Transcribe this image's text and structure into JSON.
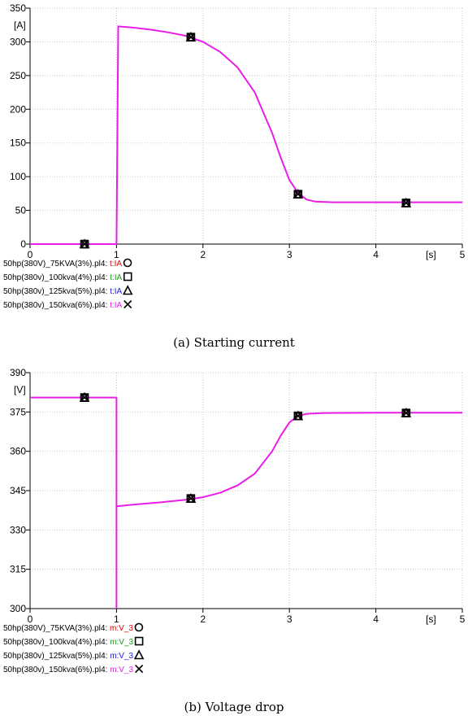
{
  "chart_data": [
    {
      "type": "line",
      "caption": "(a) Starting current",
      "xunit": "[s]",
      "yunit": "[A]",
      "xlim": [
        0,
        5
      ],
      "ylim": [
        0,
        350
      ],
      "xticks": [
        0,
        1,
        2,
        3,
        4,
        5
      ],
      "yticks": [
        0,
        50,
        100,
        150,
        200,
        250,
        300,
        350
      ],
      "line_color": "#e81ee8",
      "series": [
        {
          "values": [
            [
              0,
              0
            ],
            [
              0.99,
              0
            ],
            [
              1.0,
              0
            ],
            [
              1.02,
              323
            ],
            [
              1.2,
              321
            ],
            [
              1.4,
              318
            ],
            [
              1.6,
              314
            ],
            [
              1.8,
              309
            ],
            [
              2.0,
              300
            ],
            [
              2.2,
              285
            ],
            [
              2.4,
              262
            ],
            [
              2.6,
              225
            ],
            [
              2.8,
              165
            ],
            [
              2.9,
              128
            ],
            [
              3.0,
              95
            ],
            [
              3.1,
              76
            ],
            [
              3.2,
              66
            ],
            [
              3.3,
              63
            ],
            [
              3.5,
              62
            ],
            [
              4.0,
              62
            ],
            [
              4.5,
              62
            ],
            [
              5.0,
              62
            ]
          ],
          "markers": [
            [
              0.63,
              0
            ],
            [
              1.86,
              307
            ],
            [
              3.1,
              74
            ],
            [
              4.35,
              61
            ]
          ]
        }
      ],
      "legend": [
        {
          "file": "50hp(380V)_75KVA(3%).pl4:",
          "variable": "t:IA",
          "color": "#e00000",
          "marker": "circle"
        },
        {
          "file": "50hp(380v)_100kva(4%).pl4:",
          "variable": "t:IA",
          "color": "#1aa01a",
          "marker": "square"
        },
        {
          "file": "50hp(380v)_125kva(5%).pl4:",
          "variable": "t:IA",
          "color": "#1a1ae0",
          "marker": "triangle"
        },
        {
          "file": "50hp(380v)_150kva(6%).pl4:",
          "variable": "t:IA",
          "color": "#e81ee8",
          "marker": "cross"
        }
      ]
    },
    {
      "type": "line",
      "caption": "(b) Voltage drop",
      "xunit": "[s]",
      "yunit": "[V]",
      "xlim": [
        0,
        5
      ],
      "ylim": [
        300,
        390
      ],
      "xticks": [
        0,
        1,
        2,
        3,
        4,
        5
      ],
      "yticks": [
        300,
        315,
        330,
        345,
        360,
        375,
        390
      ],
      "line_color": "#e81ee8",
      "series": [
        {
          "values": [
            [
              0,
              380.5
            ],
            [
              1.0,
              380.5
            ],
            [
              1.0,
              300
            ],
            [
              1.0,
              339
            ],
            [
              1.2,
              339.7
            ],
            [
              1.5,
              340.5
            ],
            [
              1.8,
              341.5
            ],
            [
              2.0,
              342.5
            ],
            [
              2.2,
              344.2
            ],
            [
              2.4,
              347
            ],
            [
              2.6,
              351.5
            ],
            [
              2.8,
              360
            ],
            [
              2.9,
              366
            ],
            [
              3.0,
              371
            ],
            [
              3.1,
              373.5
            ],
            [
              3.2,
              374.3
            ],
            [
              3.4,
              374.6
            ],
            [
              4.0,
              374.7
            ],
            [
              5.0,
              374.7
            ]
          ],
          "markers": [
            [
              0.63,
              380.5
            ],
            [
              1.86,
              342
            ],
            [
              3.1,
              373.5
            ],
            [
              4.35,
              374.6
            ]
          ]
        }
      ],
      "legend": [
        {
          "file": "50hp(380V)_75KVA(3%).pl4:",
          "variable": "m:V_3",
          "color": "#e00000",
          "marker": "circle"
        },
        {
          "file": "50hp(380v)_100kva(4%).pl4:",
          "variable": "m:V_3",
          "color": "#1aa01a",
          "marker": "square"
        },
        {
          "file": "50hp(380v)_125kva(5%).pl4:",
          "variable": "m:V_3",
          "color": "#1a1ae0",
          "marker": "triangle"
        },
        {
          "file": "50hp(380v)_150kva(6%).pl4:",
          "variable": "m:V_3",
          "color": "#e81ee8",
          "marker": "cross"
        }
      ]
    }
  ]
}
